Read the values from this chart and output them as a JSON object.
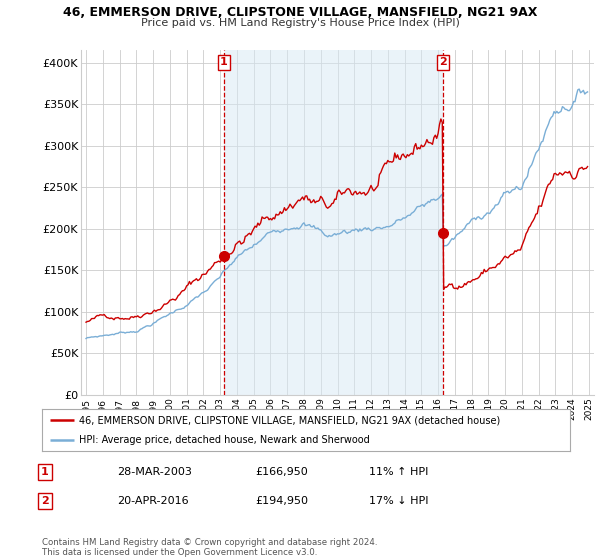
{
  "title": "46, EMMERSON DRIVE, CLIPSTONE VILLAGE, MANSFIELD, NG21 9AX",
  "subtitle": "Price paid vs. HM Land Registry's House Price Index (HPI)",
  "ylabel_ticks": [
    "£0",
    "£50K",
    "£100K",
    "£150K",
    "£200K",
    "£250K",
    "£300K",
    "£350K",
    "£400K"
  ],
  "ytick_values": [
    0,
    50000,
    100000,
    150000,
    200000,
    250000,
    300000,
    350000,
    400000
  ],
  "ylim": [
    0,
    415000
  ],
  "xlim_start": 1994.7,
  "xlim_end": 2025.3,
  "sale1_date": 2003.23,
  "sale1_price": 166950,
  "sale2_date": 2016.3,
  "sale2_price": 194950,
  "legend_line1": "46, EMMERSON DRIVE, CLIPSTONE VILLAGE, MANSFIELD, NG21 9AX (detached house)",
  "legend_line2": "HPI: Average price, detached house, Newark and Sherwood",
  "table_row1_num": "1",
  "table_row1_date": "28-MAR-2003",
  "table_row1_price": "£166,950",
  "table_row1_hpi": "11% ↑ HPI",
  "table_row2_num": "2",
  "table_row2_date": "20-APR-2016",
  "table_row2_price": "£194,950",
  "table_row2_hpi": "17% ↓ HPI",
  "footnote": "Contains HM Land Registry data © Crown copyright and database right 2024.\nThis data is licensed under the Open Government Licence v3.0.",
  "red_color": "#cc0000",
  "blue_color": "#7aaed6",
  "blue_fill": "#d6e8f5",
  "bg_color": "#ffffff",
  "grid_color": "#cccccc",
  "vline_color": "#cc0000"
}
